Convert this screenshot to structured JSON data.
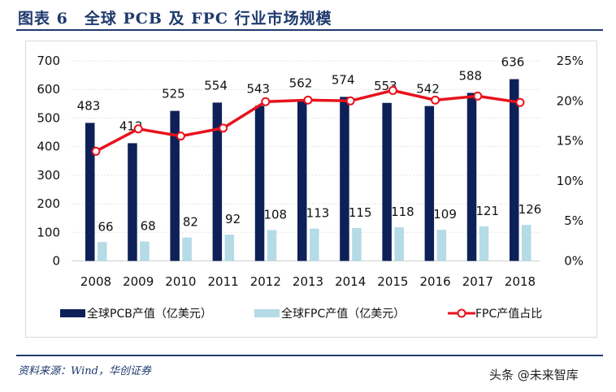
{
  "header": {
    "title": "图表 6　全球 PCB 及 FPC 行业市场规模"
  },
  "footer": {
    "source": "资料来源：Wind，华创证券",
    "watermark": "头条 @未来智库"
  },
  "colors": {
    "pcb": "#0d2158",
    "fpc": "#b4dbe6",
    "share": "#e8121c"
  },
  "chart_data": {
    "type": "bar+line",
    "categories": [
      "2008",
      "2009",
      "2010",
      "2011",
      "2012",
      "2013",
      "2014",
      "2015",
      "2016",
      "2017",
      "2018"
    ],
    "series": [
      {
        "name": "全球PCB产值（亿美元）",
        "type": "bar",
        "axis": "left",
        "values": [
          483,
          412,
          525,
          554,
          543,
          562,
          574,
          553,
          542,
          588,
          636
        ]
      },
      {
        "name": "全球FPC产值（亿美元）",
        "type": "bar",
        "axis": "left",
        "values": [
          66,
          68,
          82,
          92,
          108,
          113,
          115,
          118,
          109,
          121,
          126
        ]
      },
      {
        "name": "FPC产值占比",
        "type": "line",
        "axis": "right",
        "values": [
          13.7,
          16.5,
          15.6,
          16.6,
          19.9,
          20.1,
          20.0,
          21.3,
          20.1,
          20.6,
          19.8
        ]
      }
    ],
    "left_axis": {
      "ylim": [
        0,
        700
      ],
      "ticks": [
        "0",
        "100",
        "200",
        "300",
        "400",
        "500",
        "600",
        "700"
      ]
    },
    "right_axis": {
      "ylim": [
        0,
        25
      ],
      "ticks": [
        "0%",
        "5%",
        "10%",
        "15%",
        "20%",
        "25%"
      ]
    },
    "grid": true,
    "legend": "bottom"
  }
}
